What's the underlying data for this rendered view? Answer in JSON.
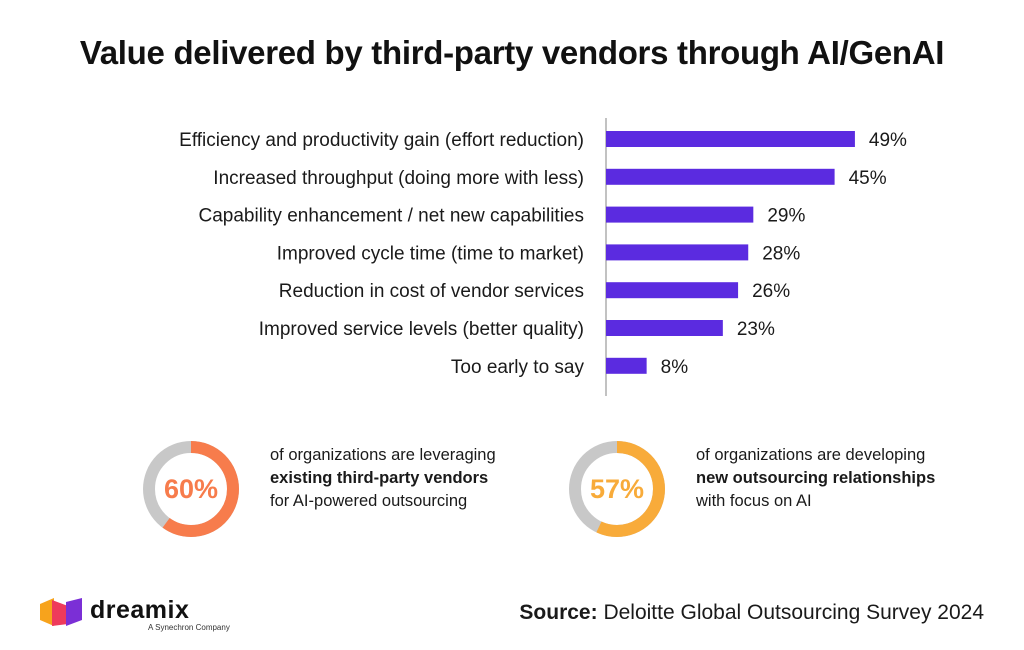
{
  "title": "Value delivered by third-party vendors through AI/GenAI",
  "chart_data": {
    "type": "bar",
    "orientation": "horizontal",
    "title": "Value delivered by third-party vendors through AI/GenAI",
    "categories": [
      "Efficiency and productivity gain (effort reduction)",
      "Increased throughput (doing more with less)",
      "Capability enhancement / net new capabilities",
      "Improved cycle time (time to market)",
      "Reduction in cost of vendor services",
      "Improved service levels (better quality)",
      "Too early to say"
    ],
    "values": [
      49,
      45,
      29,
      28,
      26,
      23,
      8
    ],
    "value_labels": [
      "49%",
      "45%",
      "29%",
      "28%",
      "26%",
      "23%",
      "8%"
    ],
    "unit": "%",
    "xlim": [
      0,
      60
    ],
    "xlabel": "",
    "ylabel": "",
    "bar_color": "#5b2be0",
    "grid": false
  },
  "stats": [
    {
      "percent": 60,
      "percent_label": "60%",
      "color": "#f77c4c",
      "line1": "of organizations are leveraging",
      "line2": "existing third-party vendors",
      "line3": "for AI-powered outsourcing"
    },
    {
      "percent": 57,
      "percent_label": "57%",
      "color": "#f8ab3a",
      "line1": "of organizations are developing",
      "line2": "new outsourcing relationships",
      "line3": "with focus on AI"
    }
  ],
  "ring_track_color": "#c8c8c8",
  "logo": {
    "brand": "dreamix",
    "tagline": "A Synechron Company"
  },
  "source": {
    "key": "Source:",
    "text": "Deloitte Global Outsourcing Survey 2024"
  }
}
